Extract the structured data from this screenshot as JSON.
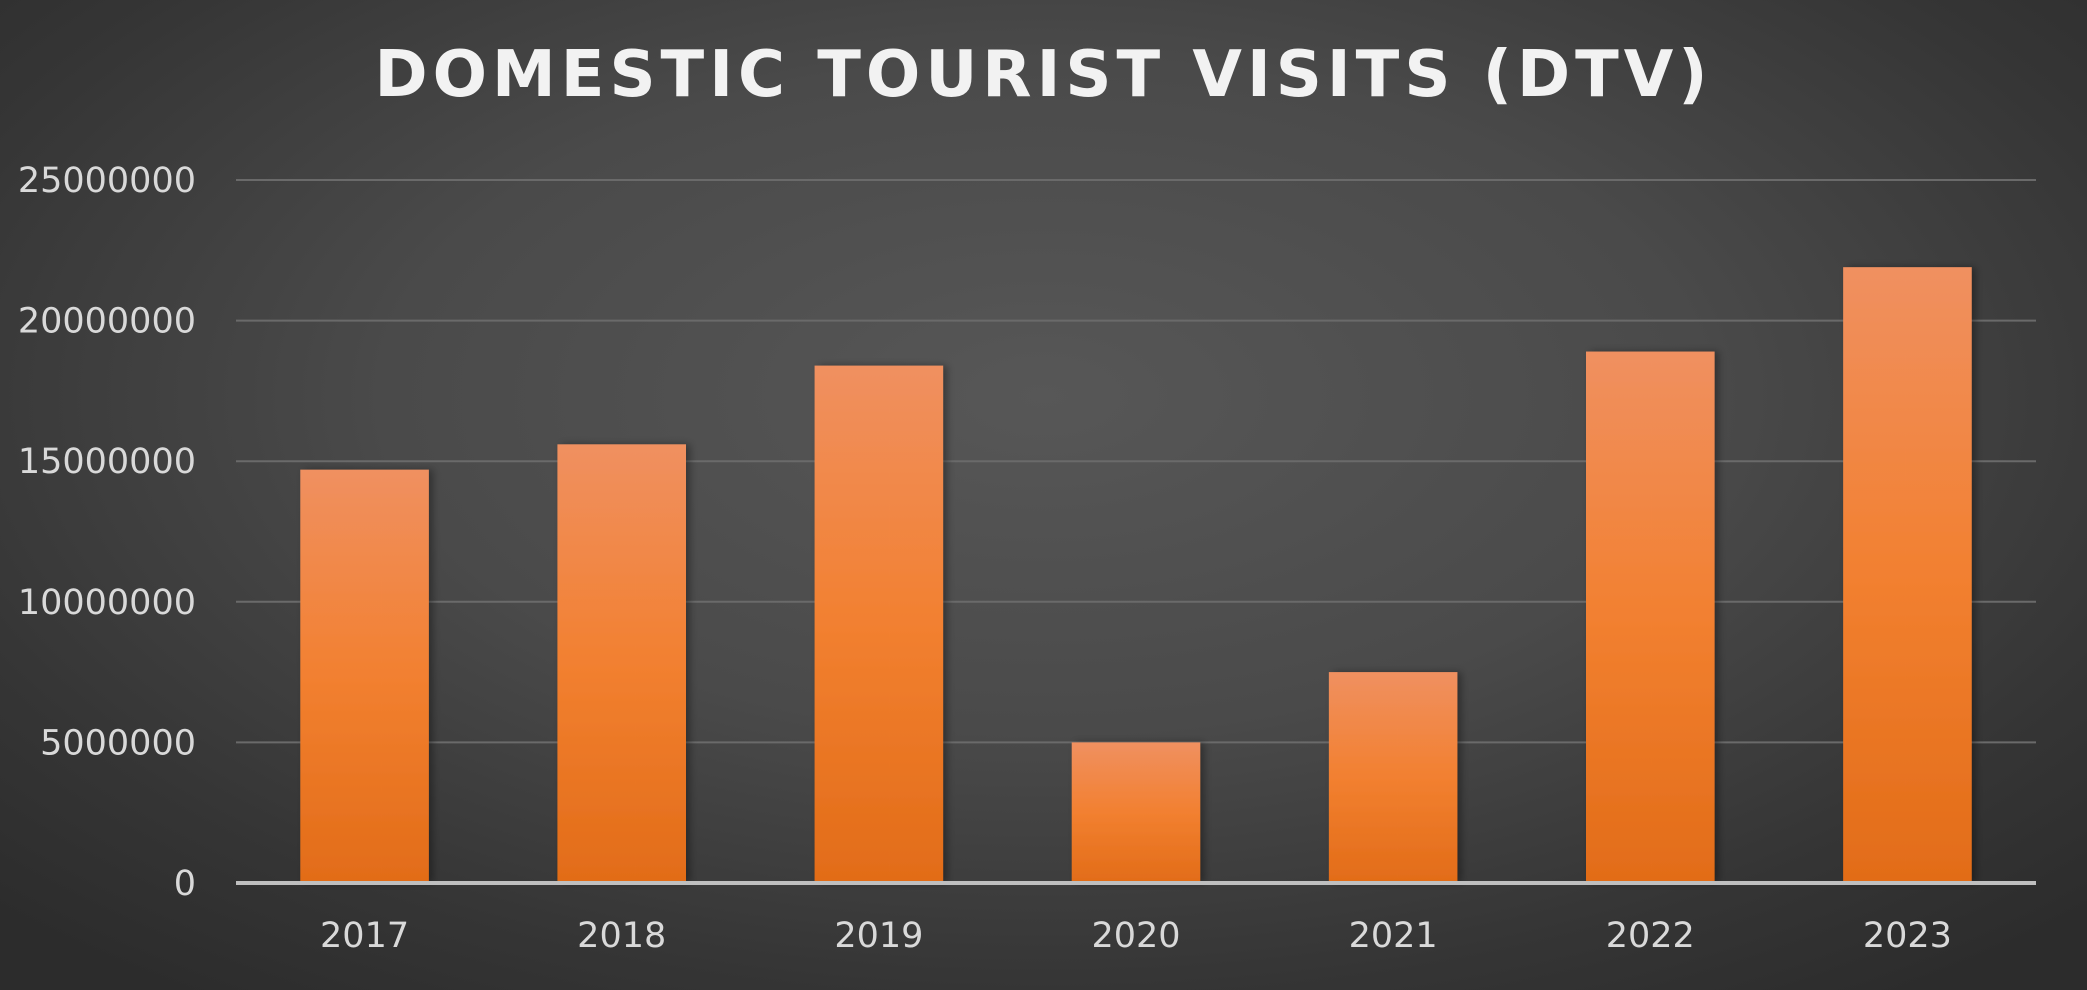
{
  "chart_data": {
    "type": "bar",
    "title": "DOMESTIC TOURIST VISITS (DTV)",
    "xlabel": "",
    "ylabel": "",
    "categories": [
      "2017",
      "2018",
      "2019",
      "2020",
      "2021",
      "2022",
      "2023"
    ],
    "values": [
      14700000,
      15600000,
      18400000,
      5000000,
      7500000,
      18900000,
      21900000
    ],
    "ylim": [
      0,
      25000000
    ],
    "yticks": [
      "0",
      "5000000",
      "10000000",
      "15000000",
      "20000000",
      "25000000"
    ],
    "grid": true,
    "legend": "none",
    "colors": {
      "bar_top": "#f09060",
      "bar_mid": "#f28030",
      "bar_bottom": "#e26c18",
      "gridline": "#6a6a6a",
      "axis": "#bfbfbf",
      "text": "#d9d9d9"
    }
  }
}
